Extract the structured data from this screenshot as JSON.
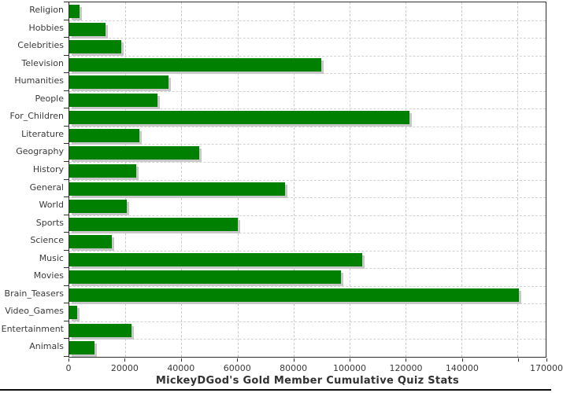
{
  "chart_data": {
    "type": "bar",
    "orientation": "horizontal",
    "title": "MickeyDGod's Gold Member Cumulative Quiz Stats",
    "categories": [
      "Religion",
      "Hobbies",
      "Celebrities",
      "Television",
      "Humanities",
      "People",
      "For_Children",
      "Literature",
      "Geography",
      "History",
      "General",
      "World",
      "Sports",
      "Science",
      "Music",
      "Movies",
      "Brain_Teasers",
      "Video_Games",
      "Entertainment",
      "Animals"
    ],
    "values": [
      3600,
      13000,
      18600,
      90000,
      35300,
      31600,
      121300,
      25000,
      46500,
      23800,
      77000,
      20500,
      60200,
      15100,
      104500,
      96900,
      160400,
      2800,
      22100,
      9000
    ],
    "xlim": [
      0,
      170000
    ],
    "x_tick_step": 20000,
    "x_tick_labels": [
      "0",
      "20000",
      "40000",
      "60000",
      "80000",
      "100000",
      "120000",
      "140000"
    ],
    "x_end_label": "170000",
    "grid": true,
    "legend": "none",
    "bar_color": "#008000",
    "bar_shadow_color": "#c8c8c8",
    "grid_color": "#cccccc",
    "axis_color": "#2f2f2f",
    "label_color": "#3a3a3a"
  }
}
